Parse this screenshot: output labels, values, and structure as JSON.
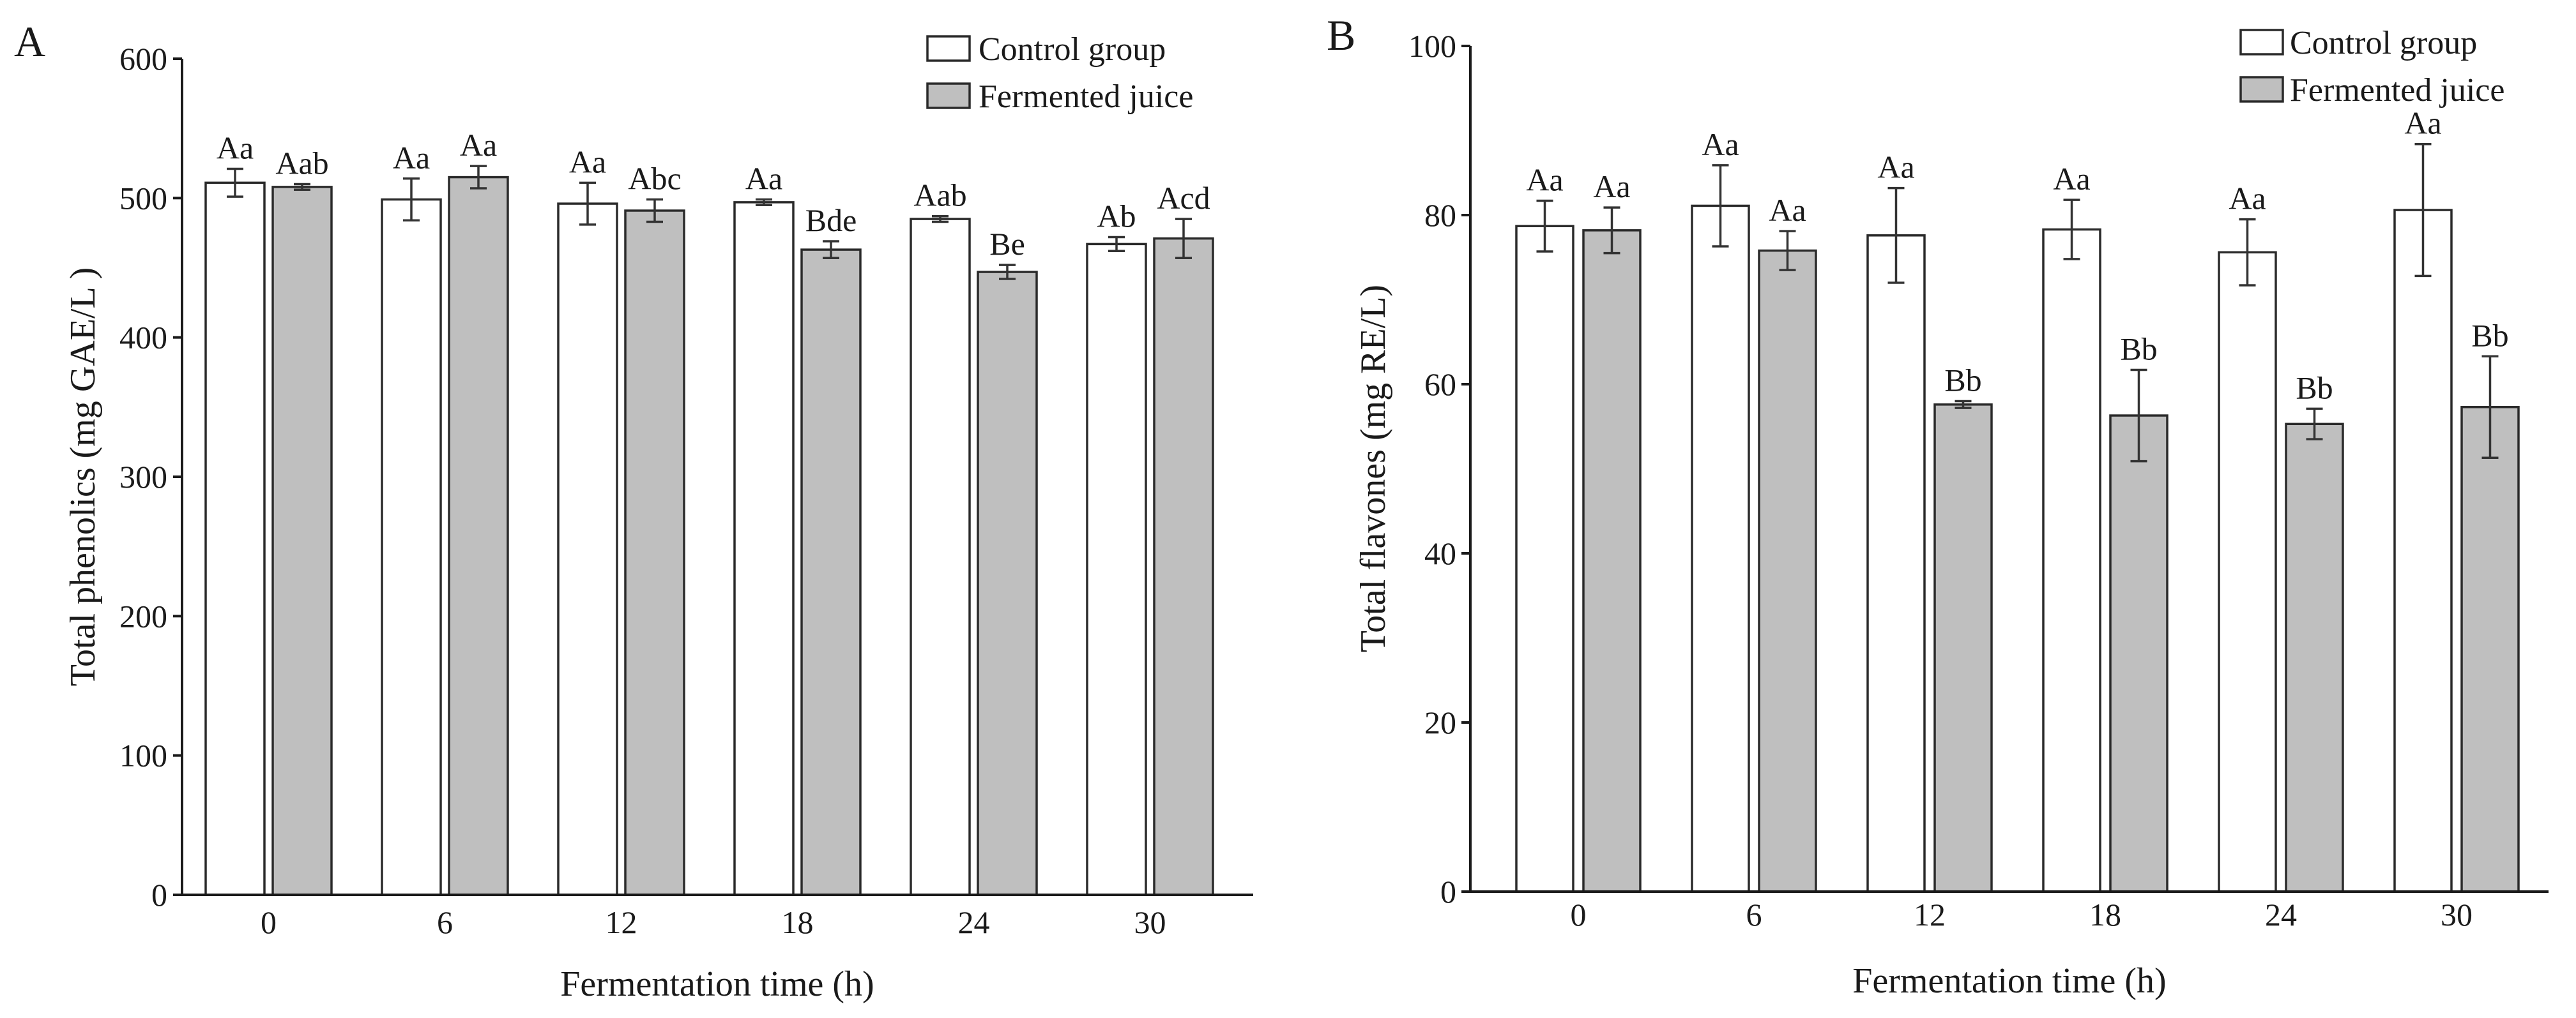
{
  "chart_data": [
    {
      "panel": "A",
      "type": "bar",
      "title": "",
      "xlabel": "Fermentation time (h)",
      "ylabel": "Total phenolics (mg GAE/L )",
      "ylim": [
        0,
        600
      ],
      "yticks": [
        0,
        100,
        200,
        300,
        400,
        500,
        600
      ],
      "categories": [
        "0",
        "6",
        "12",
        "18",
        "24",
        "30"
      ],
      "legend_position": "top-right",
      "series": [
        {
          "name": "Control group",
          "color": "#ffffff",
          "values": [
            511,
            499,
            496,
            497,
            485,
            467
          ],
          "errors": [
            10,
            15,
            15,
            2,
            2,
            5
          ],
          "labels": [
            "Aa",
            "Aa",
            "Aa",
            "Aa",
            "Aab",
            "Ab"
          ]
        },
        {
          "name": "Fermented juice",
          "color": "#bfbfbf",
          "values": [
            508,
            515,
            491,
            463,
            447,
            471
          ],
          "errors": [
            2,
            8,
            8,
            6,
            5,
            14
          ],
          "labels": [
            "Aab",
            "Aa",
            "Abc",
            "Bde",
            "Be",
            "Acd"
          ]
        }
      ]
    },
    {
      "panel": "B",
      "type": "bar",
      "title": "",
      "xlabel": "Fermentation time (h)",
      "ylabel": "Total flavones (mg RE/L)",
      "ylim": [
        0,
        100
      ],
      "yticks": [
        0,
        20,
        40,
        60,
        80,
        100
      ],
      "categories": [
        "0",
        "6",
        "12",
        "18",
        "24",
        "30"
      ],
      "legend_position": "top-right",
      "series": [
        {
          "name": "Control group",
          "color": "#ffffff",
          "values": [
            78.7,
            81.1,
            77.6,
            78.3,
            75.6,
            80.6
          ],
          "errors": [
            3.0,
            4.8,
            5.6,
            3.5,
            3.9,
            7.8
          ],
          "labels": [
            "Aa",
            "Aa",
            "Aa",
            "Aa",
            "Aa",
            "Aa"
          ]
        },
        {
          "name": "Fermented juice",
          "color": "#bfbfbf",
          "values": [
            78.2,
            75.8,
            57.6,
            56.3,
            55.3,
            57.3
          ],
          "errors": [
            2.7,
            2.3,
            0.4,
            5.4,
            1.8,
            6.0
          ],
          "labels": [
            "Aa",
            "Aa",
            "Bb",
            "Bb",
            "Bb",
            "Bb"
          ]
        }
      ]
    }
  ]
}
